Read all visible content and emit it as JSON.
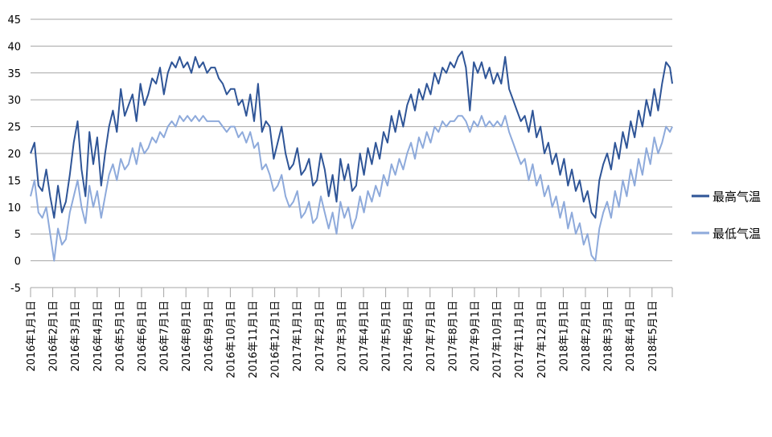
{
  "chart_data": {
    "type": "line",
    "title": "",
    "xlabel": "",
    "ylabel": "",
    "ylim": [
      -5,
      45
    ],
    "yticks": [
      -5,
      0,
      5,
      10,
      15,
      20,
      25,
      30,
      35,
      40,
      45
    ],
    "grid": true,
    "legend_position": "right",
    "categories": [
      "2016年1月1日",
      "2016年2月1日",
      "2016年3月1日",
      "2016年4月1日",
      "2016年5月1日",
      "2016年6月1日",
      "2016年7月1日",
      "2016年8月1日",
      "2016年9月1日",
      "2016年10月1日",
      "2016年11月1日",
      "2016年12月1日",
      "2017年1月1日",
      "2017年2月1日",
      "2017年3月1日",
      "2017年4月1日",
      "2017年5月1日",
      "2017年6月1日",
      "2017年7月1日",
      "2017年8月1日",
      "2017年9月1日",
      "2017年10月1日",
      "2017年11月1日",
      "2017年12月1日",
      "2018年1月1日",
      "2018年2月1日",
      "2018年3月1日",
      "2018年4月1日",
      "2018年5月1日"
    ],
    "x_end": "2018年6月7日",
    "series": [
      {
        "name": "最高气温",
        "color": "#2f5597",
        "values": [
          [
            0,
            20
          ],
          [
            5,
            22
          ],
          [
            10,
            14
          ],
          [
            15,
            13
          ],
          [
            20,
            17
          ],
          [
            25,
            12
          ],
          [
            30,
            8
          ],
          [
            35,
            14
          ],
          [
            40,
            9
          ],
          [
            45,
            11
          ],
          [
            50,
            16
          ],
          [
            55,
            22
          ],
          [
            60,
            26
          ],
          [
            65,
            17
          ],
          [
            70,
            12
          ],
          [
            75,
            24
          ],
          [
            80,
            18
          ],
          [
            85,
            23
          ],
          [
            90,
            14
          ],
          [
            95,
            20
          ],
          [
            100,
            25
          ],
          [
            105,
            28
          ],
          [
            110,
            24
          ],
          [
            115,
            32
          ],
          [
            120,
            27
          ],
          [
            125,
            29
          ],
          [
            130,
            31
          ],
          [
            135,
            26
          ],
          [
            140,
            33
          ],
          [
            145,
            29
          ],
          [
            150,
            31
          ],
          [
            155,
            34
          ],
          [
            160,
            33
          ],
          [
            165,
            36
          ],
          [
            170,
            31
          ],
          [
            175,
            35
          ],
          [
            180,
            37
          ],
          [
            185,
            36
          ],
          [
            190,
            38
          ],
          [
            195,
            36
          ],
          [
            200,
            37
          ],
          [
            205,
            35
          ],
          [
            210,
            38
          ],
          [
            215,
            36
          ],
          [
            220,
            37
          ],
          [
            225,
            35
          ],
          [
            230,
            36
          ],
          [
            235,
            36
          ],
          [
            240,
            34
          ],
          [
            245,
            33
          ],
          [
            250,
            31
          ],
          [
            255,
            32
          ],
          [
            260,
            32
          ],
          [
            265,
            29
          ],
          [
            270,
            30
          ],
          [
            275,
            27
          ],
          [
            280,
            31
          ],
          [
            285,
            26
          ],
          [
            290,
            33
          ],
          [
            295,
            24
          ],
          [
            300,
            26
          ],
          [
            305,
            25
          ],
          [
            310,
            19
          ],
          [
            315,
            22
          ],
          [
            320,
            25
          ],
          [
            325,
            20
          ],
          [
            330,
            17
          ],
          [
            335,
            18
          ],
          [
            340,
            21
          ],
          [
            345,
            16
          ],
          [
            350,
            17
          ],
          [
            355,
            19
          ],
          [
            360,
            14
          ],
          [
            365,
            15
          ],
          [
            370,
            20
          ],
          [
            375,
            17
          ],
          [
            380,
            12
          ],
          [
            385,
            16
          ],
          [
            390,
            11
          ],
          [
            395,
            19
          ],
          [
            400,
            15
          ],
          [
            405,
            18
          ],
          [
            410,
            13
          ],
          [
            415,
            14
          ],
          [
            420,
            20
          ],
          [
            425,
            16
          ],
          [
            430,
            21
          ],
          [
            435,
            18
          ],
          [
            440,
            22
          ],
          [
            445,
            19
          ],
          [
            450,
            24
          ],
          [
            455,
            22
          ],
          [
            460,
            27
          ],
          [
            465,
            24
          ],
          [
            470,
            28
          ],
          [
            475,
            25
          ],
          [
            480,
            29
          ],
          [
            485,
            31
          ],
          [
            490,
            28
          ],
          [
            495,
            32
          ],
          [
            500,
            30
          ],
          [
            505,
            33
          ],
          [
            510,
            31
          ],
          [
            515,
            35
          ],
          [
            520,
            33
          ],
          [
            525,
            36
          ],
          [
            530,
            35
          ],
          [
            535,
            37
          ],
          [
            540,
            36
          ],
          [
            545,
            38
          ],
          [
            550,
            39
          ],
          [
            555,
            36
          ],
          [
            560,
            28
          ],
          [
            565,
            37
          ],
          [
            570,
            35
          ],
          [
            575,
            37
          ],
          [
            580,
            34
          ],
          [
            585,
            36
          ],
          [
            590,
            33
          ],
          [
            595,
            35
          ],
          [
            600,
            33
          ],
          [
            605,
            38
          ],
          [
            610,
            32
          ],
          [
            615,
            30
          ],
          [
            620,
            28
          ],
          [
            625,
            26
          ],
          [
            630,
            27
          ],
          [
            635,
            24
          ],
          [
            640,
            28
          ],
          [
            645,
            23
          ],
          [
            650,
            25
          ],
          [
            655,
            20
          ],
          [
            660,
            22
          ],
          [
            665,
            18
          ],
          [
            670,
            20
          ],
          [
            675,
            16
          ],
          [
            680,
            19
          ],
          [
            685,
            14
          ],
          [
            690,
            17
          ],
          [
            695,
            13
          ],
          [
            700,
            15
          ],
          [
            705,
            11
          ],
          [
            710,
            13
          ],
          [
            715,
            9
          ],
          [
            720,
            8
          ],
          [
            725,
            15
          ],
          [
            730,
            18
          ],
          [
            735,
            20
          ],
          [
            740,
            17
          ],
          [
            745,
            22
          ],
          [
            750,
            19
          ],
          [
            755,
            24
          ],
          [
            760,
            21
          ],
          [
            765,
            26
          ],
          [
            770,
            23
          ],
          [
            775,
            28
          ],
          [
            780,
            25
          ],
          [
            785,
            30
          ],
          [
            790,
            27
          ],
          [
            795,
            32
          ],
          [
            800,
            28
          ],
          [
            805,
            33
          ],
          [
            810,
            37
          ],
          [
            815,
            36
          ],
          [
            818,
            33
          ]
        ]
      },
      {
        "name": "最低气温",
        "color": "#8eaadb",
        "values": [
          [
            0,
            12
          ],
          [
            5,
            15
          ],
          [
            10,
            9
          ],
          [
            15,
            8
          ],
          [
            20,
            10
          ],
          [
            25,
            5
          ],
          [
            30,
            0
          ],
          [
            35,
            6
          ],
          [
            40,
            3
          ],
          [
            45,
            4
          ],
          [
            50,
            9
          ],
          [
            55,
            12
          ],
          [
            60,
            15
          ],
          [
            65,
            10
          ],
          [
            70,
            7
          ],
          [
            75,
            14
          ],
          [
            80,
            10
          ],
          [
            85,
            13
          ],
          [
            90,
            8
          ],
          [
            95,
            12
          ],
          [
            100,
            16
          ],
          [
            105,
            18
          ],
          [
            110,
            15
          ],
          [
            115,
            19
          ],
          [
            120,
            17
          ],
          [
            125,
            18
          ],
          [
            130,
            21
          ],
          [
            135,
            18
          ],
          [
            140,
            22
          ],
          [
            145,
            20
          ],
          [
            150,
            21
          ],
          [
            155,
            23
          ],
          [
            160,
            22
          ],
          [
            165,
            24
          ],
          [
            170,
            23
          ],
          [
            175,
            25
          ],
          [
            180,
            26
          ],
          [
            185,
            25
          ],
          [
            190,
            27
          ],
          [
            195,
            26
          ],
          [
            200,
            27
          ],
          [
            205,
            26
          ],
          [
            210,
            27
          ],
          [
            215,
            26
          ],
          [
            220,
            27
          ],
          [
            225,
            26
          ],
          [
            230,
            26
          ],
          [
            235,
            26
          ],
          [
            240,
            26
          ],
          [
            245,
            25
          ],
          [
            250,
            24
          ],
          [
            255,
            25
          ],
          [
            260,
            25
          ],
          [
            265,
            23
          ],
          [
            270,
            24
          ],
          [
            275,
            22
          ],
          [
            280,
            24
          ],
          [
            285,
            21
          ],
          [
            290,
            22
          ],
          [
            295,
            17
          ],
          [
            300,
            18
          ],
          [
            305,
            16
          ],
          [
            310,
            13
          ],
          [
            315,
            14
          ],
          [
            320,
            16
          ],
          [
            325,
            12
          ],
          [
            330,
            10
          ],
          [
            335,
            11
          ],
          [
            340,
            13
          ],
          [
            345,
            8
          ],
          [
            350,
            9
          ],
          [
            355,
            11
          ],
          [
            360,
            7
          ],
          [
            365,
            8
          ],
          [
            370,
            12
          ],
          [
            375,
            9
          ],
          [
            380,
            6
          ],
          [
            385,
            9
          ],
          [
            390,
            5
          ],
          [
            395,
            11
          ],
          [
            400,
            8
          ],
          [
            405,
            10
          ],
          [
            410,
            6
          ],
          [
            415,
            8
          ],
          [
            420,
            12
          ],
          [
            425,
            9
          ],
          [
            430,
            13
          ],
          [
            435,
            11
          ],
          [
            440,
            14
          ],
          [
            445,
            12
          ],
          [
            450,
            16
          ],
          [
            455,
            14
          ],
          [
            460,
            18
          ],
          [
            465,
            16
          ],
          [
            470,
            19
          ],
          [
            475,
            17
          ],
          [
            480,
            20
          ],
          [
            485,
            22
          ],
          [
            490,
            19
          ],
          [
            495,
            23
          ],
          [
            500,
            21
          ],
          [
            505,
            24
          ],
          [
            510,
            22
          ],
          [
            515,
            25
          ],
          [
            520,
            24
          ],
          [
            525,
            26
          ],
          [
            530,
            25
          ],
          [
            535,
            26
          ],
          [
            540,
            26
          ],
          [
            545,
            27
          ],
          [
            550,
            27
          ],
          [
            555,
            26
          ],
          [
            560,
            24
          ],
          [
            565,
            26
          ],
          [
            570,
            25
          ],
          [
            575,
            27
          ],
          [
            580,
            25
          ],
          [
            585,
            26
          ],
          [
            590,
            25
          ],
          [
            595,
            26
          ],
          [
            600,
            25
          ],
          [
            605,
            27
          ],
          [
            610,
            24
          ],
          [
            615,
            22
          ],
          [
            620,
            20
          ],
          [
            625,
            18
          ],
          [
            630,
            19
          ],
          [
            635,
            15
          ],
          [
            640,
            18
          ],
          [
            645,
            14
          ],
          [
            650,
            16
          ],
          [
            655,
            12
          ],
          [
            660,
            14
          ],
          [
            665,
            10
          ],
          [
            670,
            12
          ],
          [
            675,
            8
          ],
          [
            680,
            11
          ],
          [
            685,
            6
          ],
          [
            690,
            9
          ],
          [
            695,
            5
          ],
          [
            700,
            7
          ],
          [
            705,
            3
          ],
          [
            710,
            5
          ],
          [
            715,
            1
          ],
          [
            720,
            0
          ],
          [
            725,
            6
          ],
          [
            730,
            9
          ],
          [
            735,
            11
          ],
          [
            740,
            8
          ],
          [
            745,
            13
          ],
          [
            750,
            10
          ],
          [
            755,
            15
          ],
          [
            760,
            12
          ],
          [
            765,
            17
          ],
          [
            770,
            14
          ],
          [
            775,
            19
          ],
          [
            780,
            16
          ],
          [
            785,
            21
          ],
          [
            790,
            18
          ],
          [
            795,
            23
          ],
          [
            800,
            20
          ],
          [
            805,
            22
          ],
          [
            810,
            25
          ],
          [
            815,
            24
          ],
          [
            818,
            25
          ]
        ]
      }
    ]
  }
}
